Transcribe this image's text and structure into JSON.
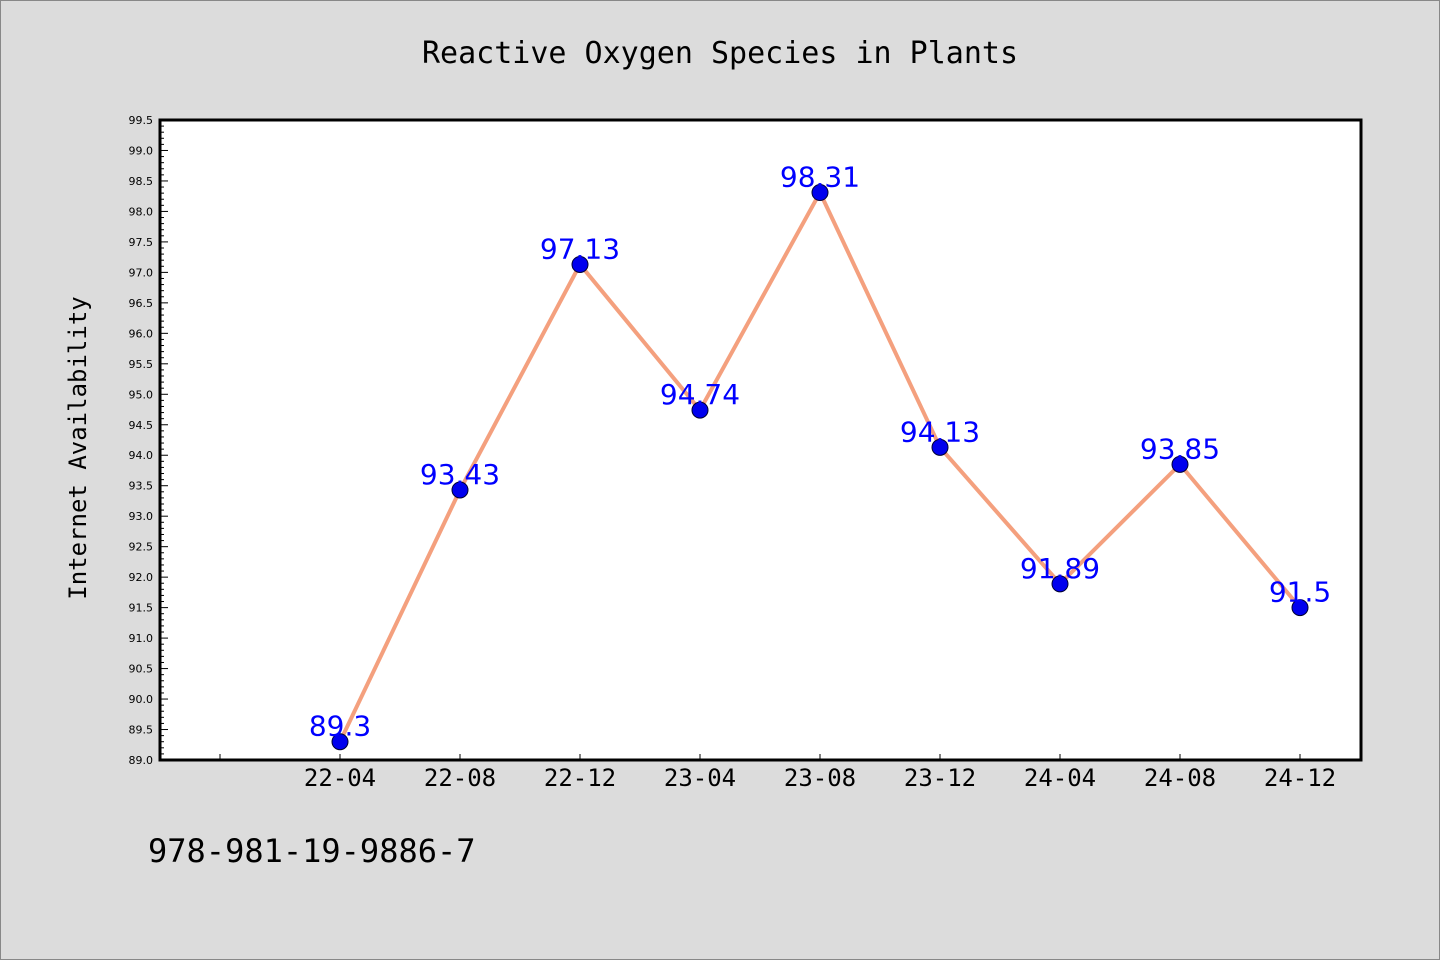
{
  "chart_data": {
    "type": "line",
    "title": "Reactive Oxygen Species in Plants",
    "xlabel": "",
    "ylabel": "Internet Availability",
    "categories": [
      "22-04",
      "22-08",
      "22-12",
      "23-04",
      "23-08",
      "23-12",
      "24-04",
      "24-08",
      "24-12"
    ],
    "series": [
      {
        "values": [
          89.3,
          93.43,
          97.13,
          94.74,
          98.31,
          94.13,
          91.89,
          93.85,
          91.5
        ],
        "data_labels": [
          "89.3",
          "93.43",
          "97.13",
          "94.74",
          "98.31",
          "94.13",
          "91.89",
          "93.85",
          "91.5"
        ]
      }
    ],
    "ylim": [
      89.0,
      99.5
    ],
    "yticks": [
      "89.0",
      "89.5",
      "90.0",
      "90.5",
      "91.0",
      "91.5",
      "92.0",
      "92.5",
      "93.0",
      "93.5",
      "94.0",
      "94.5",
      "95.0",
      "95.5",
      "96.0",
      "96.5",
      "97.0",
      "97.5",
      "98.0",
      "98.5",
      "99.0",
      "99.5"
    ],
    "grid": false,
    "line_color": "#f4a07e",
    "marker_color": "#0000ee",
    "label_color": "#0000ff",
    "background_color": "#dcdcdc",
    "plot_background_color": "#ffffff"
  },
  "footer": {
    "isbn": "978-981-19-9886-7"
  }
}
